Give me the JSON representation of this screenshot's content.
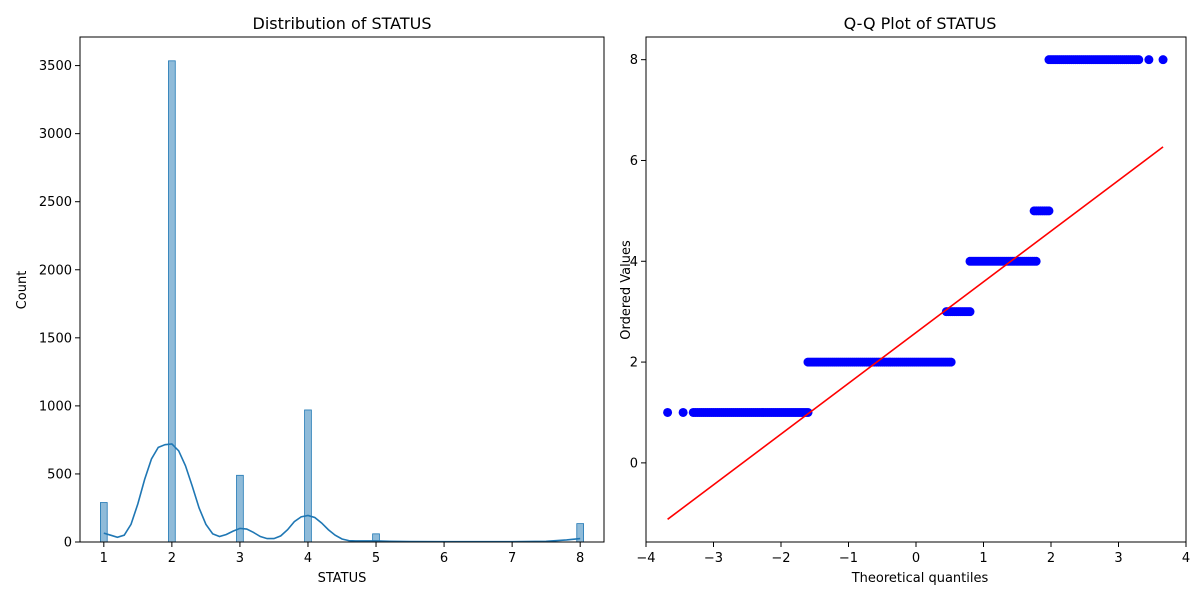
{
  "chart_data": [
    {
      "type": "bar",
      "subtype": "histogram-with-kde",
      "title": "Distribution of STATUS",
      "xlabel": "STATUS",
      "ylabel": "Count",
      "xlim": [
        0.65,
        8.35
      ],
      "ylim": [
        0,
        3710
      ],
      "xticks": [
        1,
        2,
        3,
        4,
        5,
        6,
        7,
        8
      ],
      "yticks": [
        0,
        500,
        1000,
        1500,
        2000,
        2500,
        3000,
        3500
      ],
      "bar_color": "#1f77b4",
      "bins": [
        {
          "x": 1,
          "count": 290
        },
        {
          "x": 2,
          "count": 3535
        },
        {
          "x": 3,
          "count": 490
        },
        {
          "x": 4,
          "count": 970
        },
        {
          "x": 5,
          "count": 60
        },
        {
          "x": 8,
          "count": 135
        }
      ],
      "kde": {
        "color": "#1f77b4",
        "x": [
          1.0,
          1.1,
          1.2,
          1.3,
          1.4,
          1.5,
          1.6,
          1.7,
          1.8,
          1.9,
          2.0,
          2.1,
          2.2,
          2.3,
          2.4,
          2.5,
          2.6,
          2.7,
          2.8,
          2.9,
          3.0,
          3.1,
          3.2,
          3.3,
          3.4,
          3.5,
          3.6,
          3.7,
          3.8,
          3.9,
          4.0,
          4.1,
          4.2,
          4.3,
          4.4,
          4.5,
          4.6,
          4.7,
          4.8,
          5.0,
          5.2,
          5.5,
          6.0,
          6.5,
          7.0,
          7.5,
          7.8,
          8.0
        ],
        "y": [
          65,
          50,
          35,
          50,
          130,
          280,
          460,
          610,
          695,
          715,
          720,
          670,
          560,
          410,
          250,
          130,
          60,
          40,
          55,
          80,
          100,
          95,
          70,
          40,
          25,
          25,
          45,
          90,
          150,
          185,
          195,
          180,
          140,
          90,
          50,
          22,
          10,
          8,
          8,
          8,
          5,
          3,
          2,
          2,
          2,
          5,
          15,
          25
        ]
      }
    },
    {
      "type": "scatter",
      "subtype": "qq-plot",
      "title": "Q-Q Plot of STATUS",
      "xlabel": "Theoretical quantiles",
      "ylabel": "Ordered Values",
      "xlim": [
        -4.0,
        4.0
      ],
      "ylim": [
        -1.57,
        8.45
      ],
      "xticks": [
        -4,
        -3,
        -2,
        -1,
        0,
        1,
        2,
        3,
        4
      ],
      "yticks": [
        0,
        2,
        4,
        6,
        8
      ],
      "point_color": "#0000ff",
      "line_color": "#ff0000",
      "fit_line": {
        "x": [
          -3.68,
          3.66
        ],
        "y": [
          -1.12,
          6.27
        ]
      },
      "point_groups": [
        {
          "y": 1,
          "x_min": -3.3,
          "x_max": -1.6,
          "extra_x": [
            -3.68,
            -3.45
          ]
        },
        {
          "y": 2,
          "x_min": -1.6,
          "x_max": 0.52,
          "extra_x": []
        },
        {
          "y": 3,
          "x_min": 0.45,
          "x_max": 0.8,
          "extra_x": []
        },
        {
          "y": 4,
          "x_min": 0.8,
          "x_max": 1.78,
          "extra_x": []
        },
        {
          "y": 5,
          "x_min": 1.75,
          "x_max": 1.97,
          "extra_x": []
        },
        {
          "y": 8,
          "x_min": 1.97,
          "x_max": 3.3,
          "extra_x": [
            3.45,
            3.66
          ]
        }
      ]
    }
  ]
}
